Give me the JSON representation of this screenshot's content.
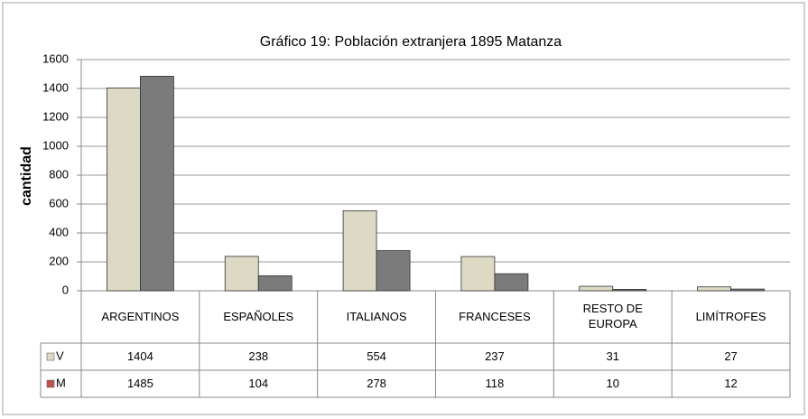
{
  "chart_data": {
    "type": "bar",
    "title": "Gráfico 19: Población extranjera 1895 Matanza",
    "y_label": "cantidad",
    "categories": [
      "ARGENTINOS",
      "ESPAÑOLES",
      "ITALIANOS",
      "FRANCESES",
      "RESTO DE EUROPA",
      "LIMÍTROFES"
    ],
    "series": [
      {
        "name": "V",
        "color": "#dcd9c4",
        "key_color": "#dcd9c4",
        "values": [
          1404,
          238,
          554,
          237,
          31,
          27
        ]
      },
      {
        "name": "M",
        "color": "#7b7b7b",
        "key_color": "#c0504d",
        "values": [
          1485,
          104,
          278,
          118,
          10,
          12
        ]
      }
    ],
    "ylim": [
      0,
      1600
    ],
    "yticks": [
      0,
      200,
      400,
      600,
      800,
      1000,
      1200,
      1400,
      1600
    ],
    "grid": true
  }
}
